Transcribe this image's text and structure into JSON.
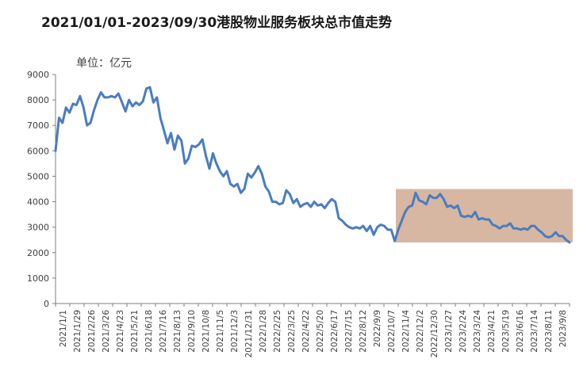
{
  "title": "2021/01/01-2023/09/30港股物业服务板块总市值走势",
  "chart_data": {
    "type": "line",
    "unit_label": "单位：亿元",
    "y_ticks": [
      0,
      1000,
      2000,
      3000,
      4000,
      5000,
      6000,
      7000,
      8000,
      9000
    ],
    "ylim": [
      0,
      9000
    ],
    "grid": false,
    "x_tick_labels": [
      "2021/1/1",
      "2021/1/29",
      "2021/2/26",
      "2021/3/26",
      "2021/4/23",
      "2021/5/21",
      "2021/6/18",
      "2021/7/16",
      "2021/8/13",
      "2021/9/10",
      "2021/10/8",
      "2021/11/5",
      "2021/12/3",
      "2021/12/31",
      "2022/1/28",
      "2022/2/25",
      "2022/3/25",
      "2022/4/22",
      "2022/5/20",
      "2022/6/17",
      "2022/7/15",
      "2022/8/12",
      "2022/9/9",
      "2022/10/7",
      "2022/11/4",
      "2022/12/2",
      "2022/12/30",
      "2023/1/27",
      "2023/2/24",
      "2023/3/24",
      "2023/4/21",
      "2023/5/19",
      "2023/6/16",
      "2023/7/14",
      "2023/8/11",
      "2023/9/8"
    ],
    "line_color": "#4a7cc0",
    "highlight_color": "#d7b7a2",
    "highlight_range": [
      "2022/10/31",
      "2023/9/30"
    ],
    "series": [
      {
        "values": [
          6000,
          7300,
          7100,
          7700,
          7500,
          7850,
          7800,
          8150,
          7700,
          7000,
          7100,
          7600,
          8000,
          8300,
          8100,
          8100,
          8150,
          8100,
          8250,
          7900,
          7550,
          8000,
          7750,
          7900,
          7800,
          7950,
          8450,
          8500,
          7900,
          8100,
          7300,
          6800,
          6300,
          6700,
          6050,
          6600,
          6400,
          5500,
          5700,
          6200,
          6150,
          6250,
          6450,
          5800,
          5300,
          5900,
          5500,
          5200,
          5000,
          5200,
          4700,
          4600,
          4700,
          4350,
          4500,
          5100,
          4950,
          5150,
          5400,
          5100,
          4600,
          4400,
          4000,
          4000,
          3900,
          3950,
          4450,
          4300,
          3950,
          4100,
          3800,
          3900,
          3950,
          3800,
          4000,
          3850,
          3900,
          3750,
          3950,
          4100,
          4000,
          3350,
          3250,
          3100,
          3000,
          2950,
          3000,
          2950,
          3050,
          2850,
          3050,
          2700,
          3000,
          3100,
          3050,
          2900,
          2900,
          2450,
          2900,
          3250,
          3600,
          3800,
          3850,
          4350,
          4050,
          4000,
          3900,
          4250,
          4150,
          4150,
          4300,
          4100,
          3800,
          3850,
          3750,
          3850,
          3450,
          3400,
          3450,
          3400,
          3600,
          3300,
          3350,
          3300,
          3300,
          3100,
          3050,
          2950,
          3050,
          3050,
          3150,
          2950,
          2950,
          2900,
          2950,
          2900,
          3050,
          3050,
          2900,
          2800,
          2650,
          2600,
          2650,
          2800,
          2650,
          2650,
          2500,
          2400
        ]
      }
    ]
  }
}
